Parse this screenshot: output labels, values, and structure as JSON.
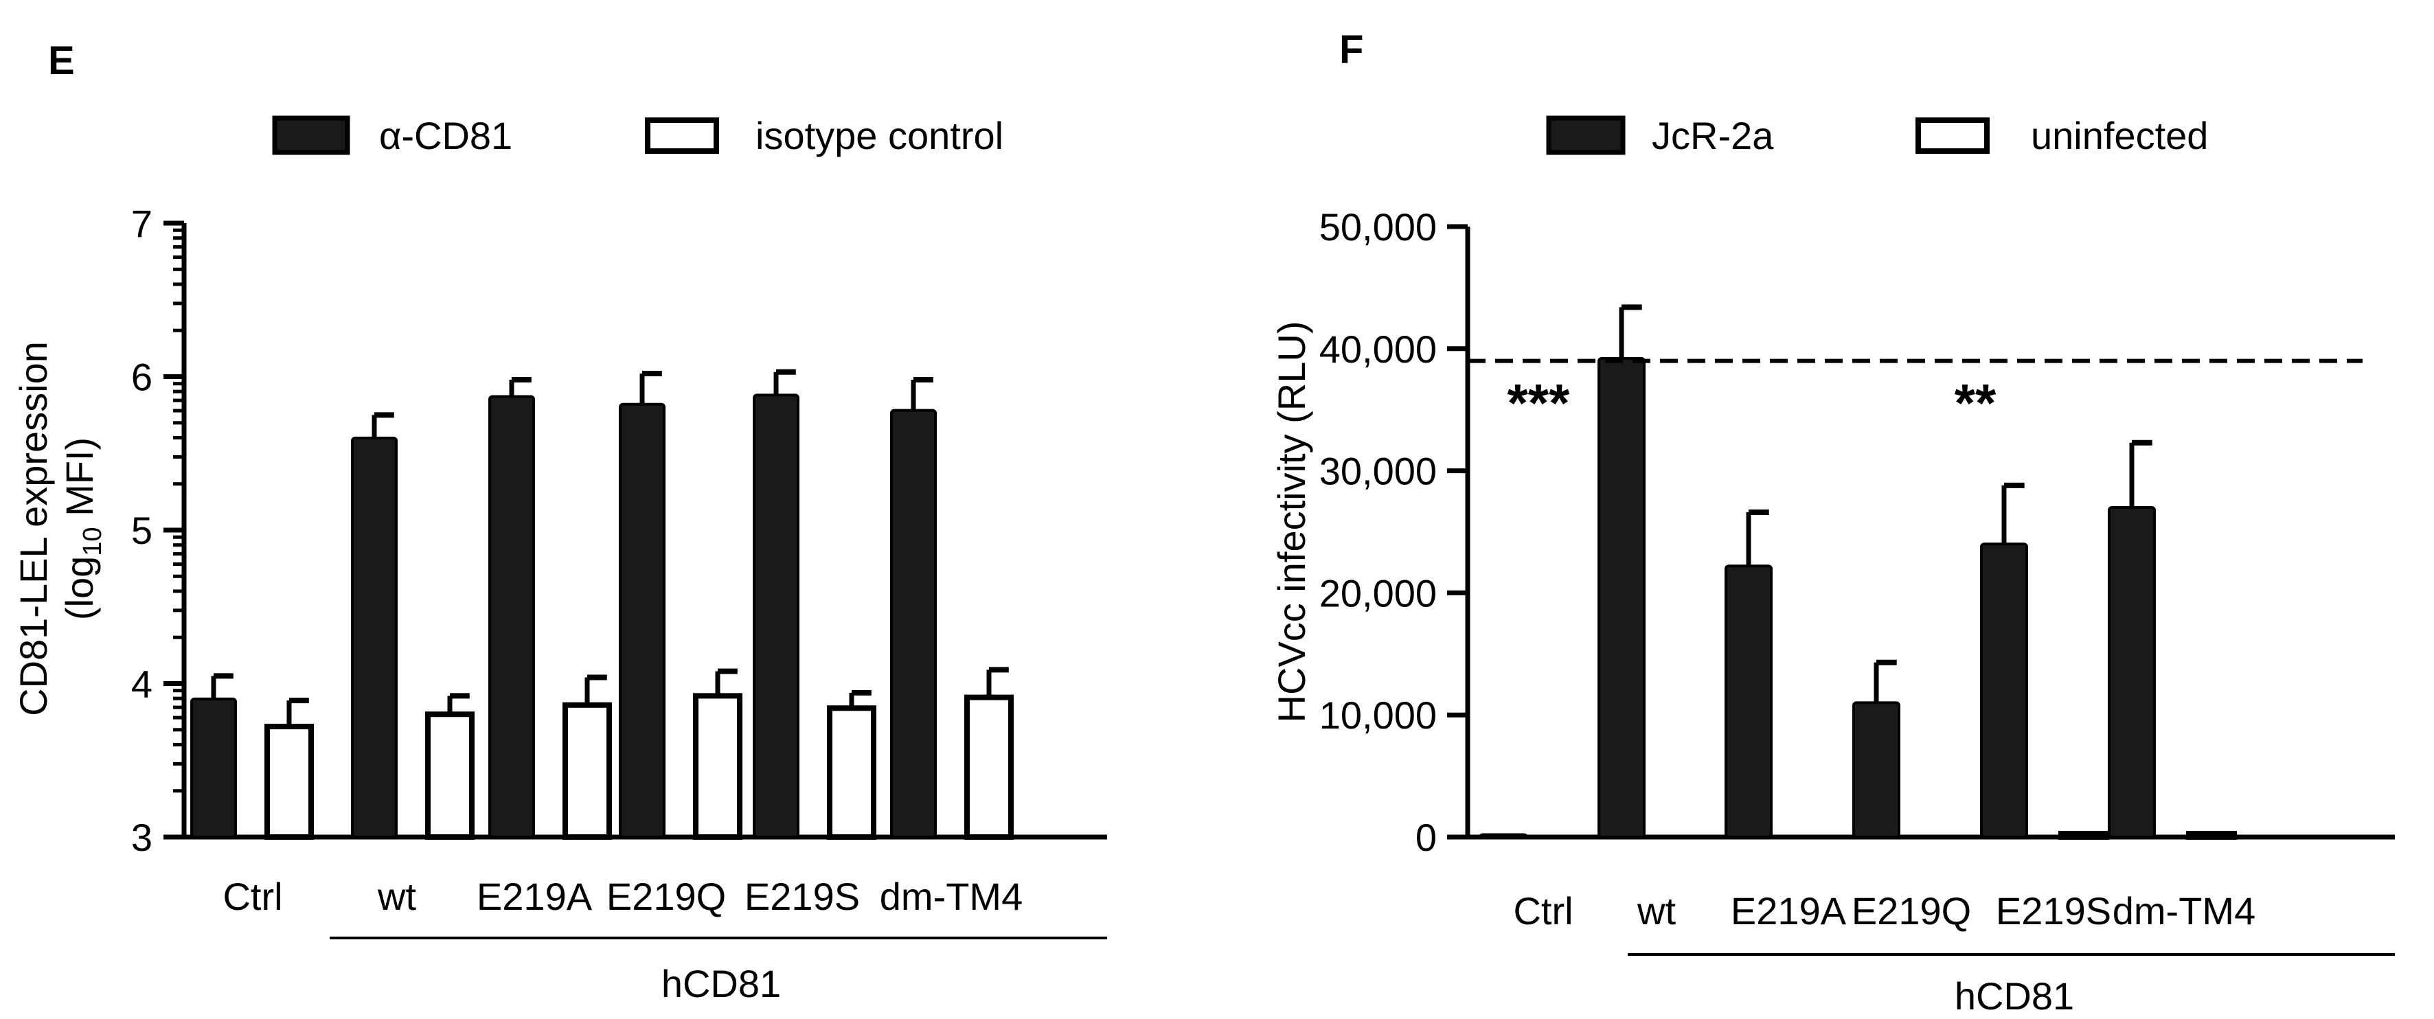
{
  "chart_data": [
    {
      "panel": "E",
      "type": "bar",
      "legend": [
        {
          "label": "α-CD81",
          "fill": "#1a1a1a"
        },
        {
          "label": "isotype control",
          "fill": "#ffffff"
        }
      ],
      "ylabel_line1": "CD81-LEL expression",
      "ylabel_line2_pre": "(log",
      "ylabel_line2_sub": "10",
      "ylabel_line2_post": " MFI)",
      "ylim": [
        3,
        7
      ],
      "yticks": [
        "3",
        "4",
        "5",
        "6",
        "7"
      ],
      "categories": [
        "Ctrl",
        "wt",
        "E219A",
        "E219Q",
        "E219S",
        "dm-TM4"
      ],
      "group_label": "hCD81",
      "series": [
        {
          "name": "α-CD81",
          "values": [
            3.9,
            5.6,
            5.87,
            5.82,
            5.88,
            5.78
          ],
          "errors": [
            0.15,
            0.15,
            0.11,
            0.2,
            0.15,
            0.2
          ]
        },
        {
          "name": "isotype control",
          "values": [
            3.72,
            3.8,
            3.86,
            3.92,
            3.84,
            3.91
          ],
          "errors": [
            0.17,
            0.12,
            0.18,
            0.16,
            0.1,
            0.18
          ]
        }
      ]
    },
    {
      "panel": "F",
      "type": "bar",
      "legend": [
        {
          "label": "JcR-2a",
          "fill": "#1a1a1a"
        },
        {
          "label": "uninfected",
          "fill": "#ffffff"
        }
      ],
      "ylabel": "HCVcc infectivity  (RLU)",
      "ylim": [
        0,
        50000
      ],
      "yticks": [
        "0",
        "10,000",
        "20,000",
        "30,000",
        "40,000",
        "50,000"
      ],
      "categories": [
        "Ctrl",
        "wt",
        "E219A",
        "E219Q",
        "E219S",
        "dm-TM4"
      ],
      "group_label": "hCD81",
      "reference_line": 39000,
      "annotations": [
        {
          "text": "***",
          "category": "Ctrl"
        },
        {
          "text": "**",
          "category": "E219Q"
        }
      ],
      "series": [
        {
          "name": "JcR-2a",
          "values": [
            200,
            39200,
            22200,
            11000,
            24000,
            27000
          ],
          "errors": [
            0,
            4200,
            4400,
            3300,
            4800,
            5300
          ]
        },
        {
          "name": "uninfected",
          "values": [
            0,
            0,
            0,
            0,
            150,
            150
          ],
          "errors": [
            0,
            0,
            0,
            0,
            0,
            0
          ]
        }
      ]
    }
  ]
}
